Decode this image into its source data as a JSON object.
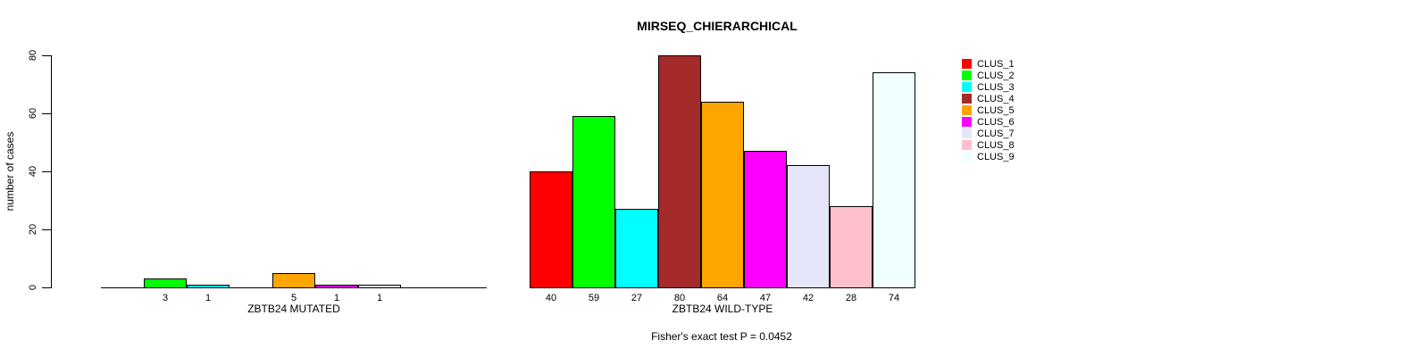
{
  "chart_data": {
    "type": "bar",
    "title": "MIRSEQ_CHIERARCHICAL",
    "ylabel": "number of cases",
    "xlabel": "",
    "ylim": [
      0,
      80
    ],
    "yticks": [
      0,
      20,
      40,
      60,
      80
    ],
    "grid": false,
    "legend_position": "right",
    "clusters": [
      {
        "label": "CLUS_1",
        "color": "#FF0000"
      },
      {
        "label": "CLUS_2",
        "color": "#00FF00"
      },
      {
        "label": "CLUS_3",
        "color": "#00FFFF"
      },
      {
        "label": "CLUS_4",
        "color": "#A52A2A"
      },
      {
        "label": "CLUS_5",
        "color": "#FFA500"
      },
      {
        "label": "CLUS_6",
        "color": "#FF00FF"
      },
      {
        "label": "CLUS_7",
        "color": "#E6E6FA"
      },
      {
        "label": "CLUS_8",
        "color": "#FFC0CB"
      },
      {
        "label": "CLUS_9",
        "color": "#F0FFFF"
      }
    ],
    "groups": [
      {
        "label": "ZBTB24 MUTATED",
        "values": [
          0,
          3,
          1,
          0,
          5,
          1,
          1,
          0,
          0
        ],
        "bar_labels": [
          "",
          "3",
          "1",
          "",
          "5",
          "1",
          "1",
          "",
          ""
        ]
      },
      {
        "label": "ZBTB24 WILD-TYPE",
        "values": [
          40,
          59,
          27,
          80,
          64,
          47,
          42,
          28,
          74
        ],
        "bar_labels": [
          "40",
          "59",
          "27",
          "80",
          "64",
          "47",
          "42",
          "28",
          "74"
        ]
      }
    ],
    "annotation": "Fisher's exact test P = 0.0452"
  }
}
